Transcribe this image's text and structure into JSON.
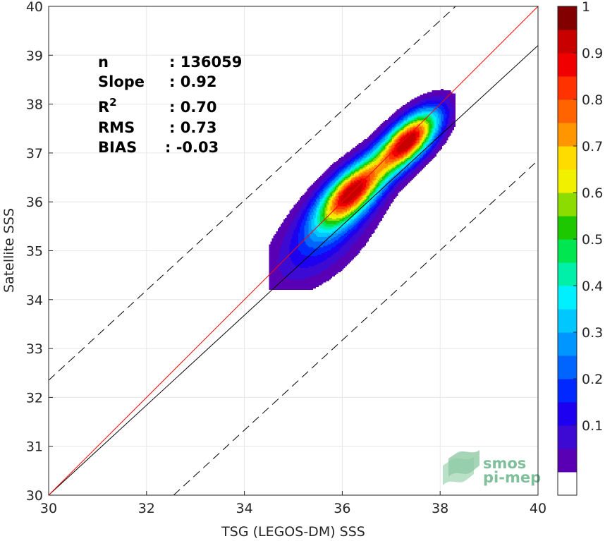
{
  "chart_data": {
    "type": "contour_scatter",
    "xlabel": "TSG (LEGOS-DM) SSS",
    "ylabel": "Satellite SSS",
    "xlim": [
      30,
      40
    ],
    "ylim": [
      30,
      40
    ],
    "xticks": [
      30,
      32,
      34,
      36,
      38,
      40
    ],
    "yticks": [
      30,
      31,
      32,
      33,
      34,
      35,
      36,
      37,
      38,
      39,
      40
    ],
    "grid": true,
    "stats": [
      {
        "label": "n",
        "value": ": 136059"
      },
      {
        "label": "Slope",
        "value": ": 0.92"
      },
      {
        "label": "R",
        "sup": "2",
        "value": ": 0.70"
      },
      {
        "label": "RMS",
        "value": ": 0.73"
      },
      {
        "label": "BIAS",
        "value": ": -0.03"
      }
    ],
    "reference_lines": {
      "identity": {
        "slope": 1,
        "intercept": 0,
        "color": "#ff0000"
      },
      "fit": {
        "slope": 0.92,
        "intercept": 2.4,
        "color": "#000000"
      },
      "dashed_offset": 2.35
    },
    "density": {
      "peaks": [
        {
          "x": 37.35,
          "y": 37.25,
          "value": 1.0
        },
        {
          "x": 36.2,
          "y": 36.2,
          "value": 0.95
        }
      ],
      "levels": [
        0.05,
        0.1,
        0.15,
        0.2,
        0.25,
        0.3,
        0.35,
        0.4,
        0.45,
        0.5,
        0.55,
        0.6,
        0.65,
        0.7,
        0.75,
        0.8,
        0.85,
        0.9,
        0.95
      ]
    },
    "colorbar": {
      "ticks": [
        "0.1",
        "0.2",
        "0.3",
        "0.4",
        "0.5",
        "0.6",
        "0.7",
        "0.8",
        "0.9",
        "1"
      ],
      "colors": [
        "#ffffff",
        "#5a00b4",
        "#3c0ad2",
        "#1e00f0",
        "#0028ff",
        "#0064ff",
        "#0096ff",
        "#00c8ff",
        "#00f0ff",
        "#00f0aa",
        "#00e650",
        "#1ec800",
        "#8cdc00",
        "#f0f000",
        "#ffdc00",
        "#ff9600",
        "#ff6400",
        "#ff3200",
        "#f00000",
        "#c80000",
        "#820000"
      ]
    }
  },
  "logo": {
    "line1": "smos",
    "line2": "pi-mep"
  }
}
